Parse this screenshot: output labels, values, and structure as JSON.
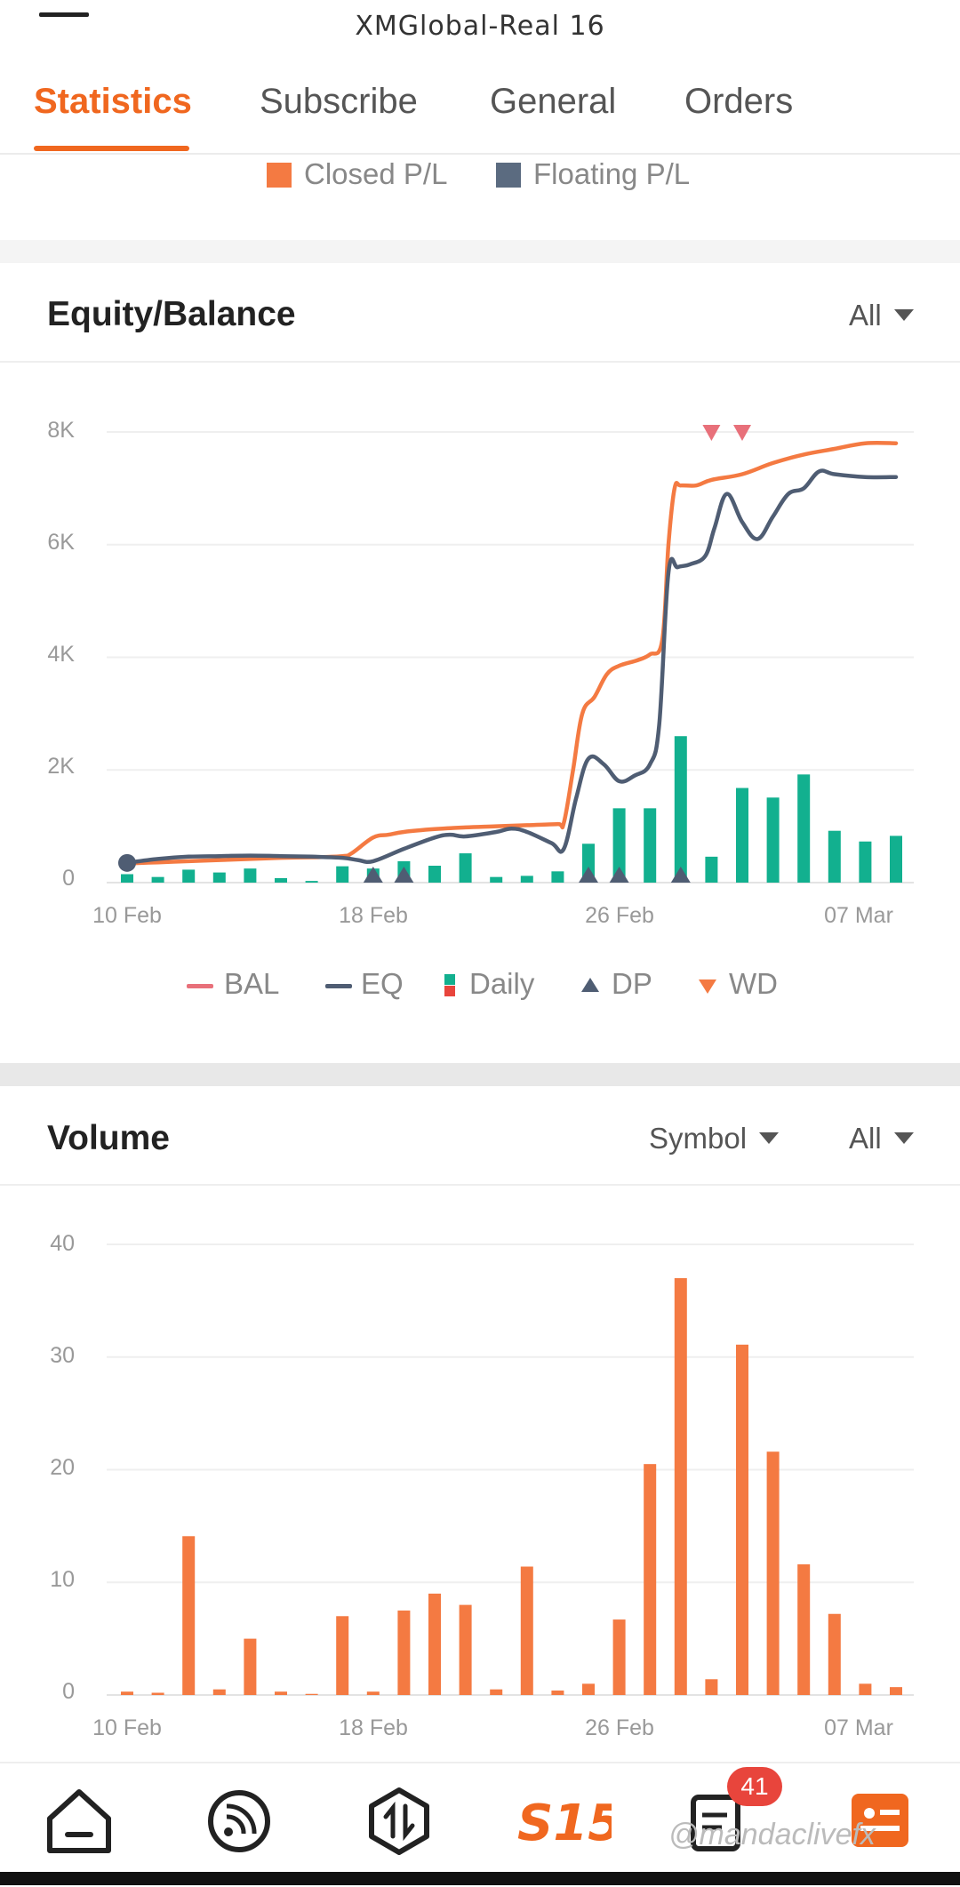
{
  "header": {
    "account_title": "XMGlobal-Real 16"
  },
  "tabs": [
    {
      "label": "Statistics",
      "active": true
    },
    {
      "label": "Subscribe",
      "active": false
    },
    {
      "label": "General",
      "active": false
    },
    {
      "label": "Orders",
      "active": false
    }
  ],
  "pl_legend": {
    "closed": {
      "label": "Closed P/L",
      "color": "#f47a42"
    },
    "floating": {
      "label": "Floating P/L",
      "color": "#5b6b80"
    }
  },
  "equity_section": {
    "title": "Equity/Balance",
    "filter_label": "All",
    "legend": [
      {
        "key": "bal",
        "label": "BAL",
        "color": "#e8707a"
      },
      {
        "key": "eq",
        "label": "EQ",
        "color": "#4f5d73"
      },
      {
        "key": "daily",
        "label": "Daily",
        "color": "#12b08f"
      },
      {
        "key": "dp",
        "label": "DP",
        "color": "#4f5d73"
      },
      {
        "key": "wd",
        "label": "WD",
        "color": "#f47a42"
      }
    ]
  },
  "volume_section": {
    "title": "Volume",
    "symbol_filter_label": "Symbol",
    "filter_label": "All"
  },
  "chart_data": [
    {
      "type": "line",
      "title": "Equity/Balance",
      "ylim": [
        0,
        8000
      ],
      "y_ticks": [
        "0",
        "2K",
        "4K",
        "6K",
        "8K"
      ],
      "x_ticks": [
        {
          "label": "10 Feb",
          "day": 0
        },
        {
          "label": "18 Feb",
          "day": 8
        },
        {
          "label": "26 Feb",
          "day": 16
        },
        {
          "label": "07 Mar",
          "day": 25
        }
      ],
      "series": [
        {
          "name": "BAL",
          "color": "#f47a42",
          "x": [
            0,
            1,
            2,
            3,
            4,
            5,
            6,
            7,
            7.3,
            8,
            8.5,
            9,
            10,
            11,
            12,
            13,
            14,
            14.2,
            14.5,
            14.8,
            15.2,
            15.6,
            16,
            16.6,
            17,
            17.4,
            17.6,
            17.8,
            18,
            18.5,
            19,
            20,
            21,
            22,
            23,
            24,
            25
          ],
          "values": [
            340,
            360,
            380,
            400,
            420,
            440,
            450,
            470,
            520,
            800,
            850,
            900,
            950,
            980,
            1000,
            1020,
            1040,
            1060,
            2000,
            3000,
            3300,
            3700,
            3850,
            3950,
            4050,
            4300,
            6000,
            7000,
            7050,
            7050,
            7150,
            7250,
            7450,
            7600,
            7700,
            7800,
            7800
          ]
        },
        {
          "name": "EQ",
          "color": "#4f5d73",
          "x": [
            0,
            1,
            2,
            3,
            4,
            5,
            6,
            7,
            7.5,
            8,
            9,
            10,
            10.5,
            11,
            12,
            12.5,
            13,
            13.8,
            14.2,
            14.6,
            15,
            15.5,
            16,
            16.5,
            17,
            17.3,
            17.6,
            17.9,
            18.3,
            18.8,
            19.1,
            19.5,
            20,
            20.5,
            21,
            21.5,
            22,
            22.5,
            23,
            24,
            25
          ],
          "values": [
            350,
            420,
            460,
            470,
            480,
            470,
            460,
            440,
            400,
            380,
            600,
            800,
            850,
            820,
            900,
            960,
            900,
            700,
            600,
            1500,
            2200,
            2100,
            1800,
            1900,
            2100,
            2800,
            5500,
            5600,
            5650,
            5800,
            6300,
            6900,
            6400,
            6100,
            6500,
            6900,
            7000,
            7300,
            7250,
            7200,
            7200
          ]
        },
        {
          "name": "Daily",
          "color": "#12b08f",
          "x": [
            0,
            1,
            2,
            3,
            4,
            5,
            6,
            7,
            8,
            9,
            10,
            11,
            12,
            13,
            14,
            15,
            16,
            17,
            18,
            19,
            20,
            21,
            22,
            23,
            24,
            25
          ],
          "values": [
            150,
            100,
            230,
            180,
            250,
            80,
            30,
            290,
            250,
            380,
            300,
            520,
            100,
            120,
            200,
            690,
            1320,
            1320,
            2600,
            460,
            1680,
            1510,
            1920,
            920,
            730,
            830
          ]
        },
        {
          "name": "DP",
          "color": "#4f5d73",
          "x": [
            8,
            9,
            15,
            16,
            18
          ]
        },
        {
          "name": "WD",
          "color": "#f47a42",
          "x": [
            19,
            20
          ]
        }
      ]
    },
    {
      "type": "bar",
      "title": "Volume",
      "ylim": [
        0,
        40
      ],
      "y_ticks": [
        "0",
        "10",
        "20",
        "30",
        "40"
      ],
      "x_ticks": [
        {
          "label": "10 Feb",
          "day": 0
        },
        {
          "label": "18 Feb",
          "day": 8
        },
        {
          "label": "26 Feb",
          "day": 16
        },
        {
          "label": "07 Mar",
          "day": 25
        }
      ],
      "series": [
        {
          "name": "Volume",
          "color": "#f47a42",
          "x": [
            0,
            1,
            2,
            3,
            4,
            5,
            6,
            7,
            8,
            9,
            10,
            11,
            12,
            13,
            14,
            15,
            16,
            17,
            18,
            19,
            20,
            21,
            22,
            23,
            24,
            25
          ],
          "values": [
            0.3,
            0.2,
            14.1,
            0.5,
            5.0,
            0.3,
            0.1,
            7.0,
            0.3,
            7.5,
            9.0,
            8.0,
            0.5,
            11.4,
            0.4,
            1.0,
            6.7,
            20.5,
            37.0,
            1.4,
            31.1,
            21.6,
            11.6,
            7.2,
            1.0,
            0.7
          ]
        }
      ]
    }
  ]
}
